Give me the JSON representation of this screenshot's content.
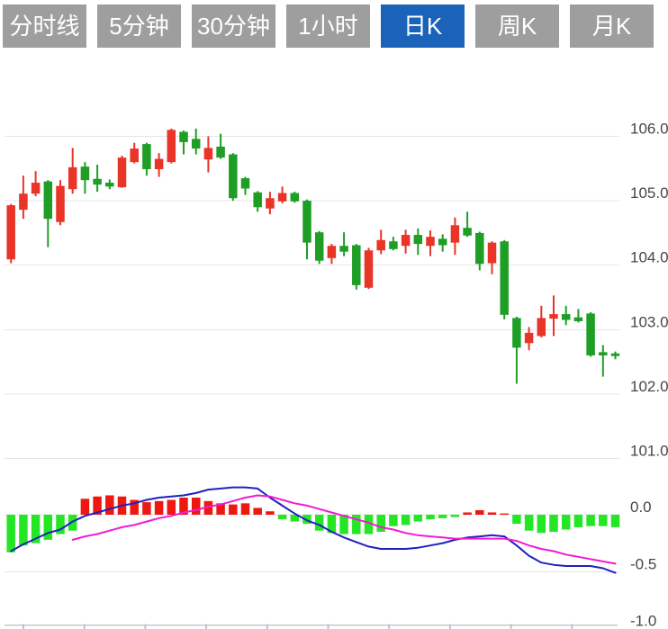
{
  "tabs": [
    {
      "label": "分时线",
      "active": false
    },
    {
      "label": "5分钟",
      "active": false
    },
    {
      "label": "30分钟",
      "active": false
    },
    {
      "label": "1小时",
      "active": false
    },
    {
      "label": "日K",
      "active": true
    },
    {
      "label": "周K",
      "active": false
    },
    {
      "label": "月K",
      "active": false
    }
  ],
  "colors": {
    "tab_gray": "#9e9e9e",
    "tab_active_blue": "#1a63b8",
    "tab_text": "#ffffff",
    "candle_up_red": "#e93428",
    "candle_down_green": "#1f9e26",
    "macd_up_red": "#ee1810",
    "macd_down_green": "#25e625",
    "dif_line_blue": "#2020c0",
    "dea_line_magenta": "#f41ad2",
    "grid_line": "#e4e4e4",
    "axis_line": "#c9c9c9",
    "tick_mark": "#b6c3d2",
    "axis_text": "#45454d"
  },
  "chart_data": [
    {
      "type": "candlestick",
      "title": "",
      "xlabel": "",
      "ylabel": "",
      "legend": "none",
      "grid": "horizontal",
      "y_axis_labels": [
        "106.0",
        "105.0",
        "104.0",
        "103.0",
        "102.0",
        "101.0"
      ],
      "y_axis_values": [
        106.0,
        105.0,
        104.0,
        103.0,
        102.0,
        101.0
      ],
      "ylim": [
        100.6,
        106.9
      ],
      "ohlc_order": [
        "open",
        "high",
        "low",
        "close"
      ],
      "candles": [
        [
          104.09,
          104.95,
          104.03,
          104.93
        ],
        [
          104.86,
          105.39,
          104.72,
          105.11
        ],
        [
          105.11,
          105.46,
          105.07,
          105.28
        ],
        [
          105.3,
          105.32,
          104.28,
          104.72
        ],
        [
          104.67,
          105.32,
          104.62,
          105.23
        ],
        [
          105.18,
          105.82,
          105.11,
          105.52
        ],
        [
          105.53,
          105.6,
          105.11,
          105.32
        ],
        [
          105.34,
          105.56,
          105.14,
          105.25
        ],
        [
          105.28,
          105.33,
          105.18,
          105.22
        ],
        [
          105.21,
          105.7,
          105.2,
          105.67
        ],
        [
          105.6,
          105.9,
          105.58,
          105.81
        ],
        [
          105.88,
          105.9,
          105.39,
          105.49
        ],
        [
          105.49,
          105.74,
          105.37,
          105.65
        ],
        [
          105.6,
          106.12,
          105.58,
          106.1
        ],
        [
          106.07,
          106.09,
          105.72,
          105.91
        ],
        [
          105.96,
          106.12,
          105.72,
          105.81
        ],
        [
          105.64,
          106.0,
          105.44,
          105.82
        ],
        [
          105.84,
          106.04,
          105.65,
          105.67
        ],
        [
          105.72,
          105.74,
          105.0,
          105.04
        ],
        [
          105.35,
          105.37,
          105.09,
          105.19
        ],
        [
          105.13,
          105.15,
          104.83,
          104.9
        ],
        [
          104.88,
          105.14,
          104.79,
          105.04
        ],
        [
          104.99,
          105.22,
          104.96,
          105.12
        ],
        [
          105.12,
          105.14,
          104.97,
          104.99
        ],
        [
          105.0,
          105.02,
          104.09,
          104.35
        ],
        [
          104.51,
          104.53,
          104.02,
          104.07
        ],
        [
          104.11,
          104.33,
          104.02,
          104.3
        ],
        [
          104.3,
          104.51,
          104.14,
          104.21
        ],
        [
          104.31,
          104.33,
          103.62,
          103.69
        ],
        [
          103.65,
          104.27,
          103.63,
          104.23
        ],
        [
          104.23,
          104.55,
          104.17,
          104.39
        ],
        [
          104.37,
          104.44,
          104.23,
          104.25
        ],
        [
          104.3,
          104.55,
          104.18,
          104.47
        ],
        [
          104.47,
          104.57,
          104.16,
          104.33
        ],
        [
          104.3,
          104.54,
          104.14,
          104.44
        ],
        [
          104.41,
          104.48,
          104.21,
          104.31
        ],
        [
          104.35,
          104.74,
          104.16,
          104.62
        ],
        [
          104.58,
          104.83,
          104.44,
          104.46
        ],
        [
          104.5,
          104.52,
          103.92,
          104.02
        ],
        [
          104.03,
          104.37,
          103.86,
          104.35
        ],
        [
          104.37,
          104.39,
          103.16,
          103.23
        ],
        [
          103.18,
          103.2,
          102.16,
          102.72
        ],
        [
          102.79,
          103.04,
          102.68,
          102.95
        ],
        [
          102.9,
          103.37,
          102.88,
          103.18
        ],
        [
          103.17,
          103.53,
          102.9,
          103.24
        ],
        [
          103.24,
          103.37,
          103.07,
          103.15
        ],
        [
          103.19,
          103.32,
          103.11,
          103.13
        ],
        [
          103.25,
          103.27,
          102.58,
          102.6
        ],
        [
          102.65,
          102.76,
          102.27,
          102.6
        ],
        [
          102.63,
          102.66,
          102.54,
          102.59
        ]
      ]
    },
    {
      "type": "macd",
      "title": "",
      "legend": "none",
      "grid": "horizontal",
      "y_axis_labels": [
        "0.0",
        "-0.5",
        "-1.0"
      ],
      "y_axis_values": [
        0.0,
        -0.5,
        -1.0
      ],
      "ylim": [
        -1.0,
        0.3
      ],
      "histogram": [
        -0.33,
        -0.27,
        -0.25,
        -0.22,
        -0.17,
        -0.14,
        0.14,
        0.16,
        0.17,
        0.16,
        0.13,
        0.11,
        0.12,
        0.13,
        0.15,
        0.15,
        0.12,
        0.1,
        0.09,
        0.1,
        0.06,
        0.03,
        -0.04,
        -0.06,
        -0.08,
        -0.14,
        -0.16,
        -0.17,
        -0.17,
        -0.17,
        -0.15,
        -0.1,
        -0.09,
        -0.06,
        -0.04,
        -0.03,
        -0.02,
        0.02,
        0.04,
        0.02,
        0.01,
        -0.08,
        -0.14,
        -0.16,
        -0.15,
        -0.13,
        -0.11,
        -0.1,
        -0.1,
        -0.11
      ],
      "dif": [
        -0.32,
        -0.26,
        -0.21,
        -0.16,
        -0.13,
        -0.06,
        -0.01,
        0.02,
        0.05,
        0.08,
        0.1,
        0.13,
        0.15,
        0.16,
        0.17,
        0.19,
        0.22,
        0.23,
        0.24,
        0.24,
        0.23,
        0.15,
        0.08,
        0.01,
        -0.05,
        -0.09,
        -0.15,
        -0.2,
        -0.24,
        -0.28,
        -0.3,
        -0.3,
        -0.3,
        -0.29,
        -0.27,
        -0.25,
        -0.22,
        -0.2,
        -0.19,
        -0.18,
        -0.19,
        -0.27,
        -0.36,
        -0.42,
        -0.44,
        -0.45,
        -0.45,
        -0.45,
        -0.47,
        -0.51
      ],
      "dea": [
        null,
        null,
        null,
        null,
        null,
        -0.22,
        -0.19,
        -0.17,
        -0.14,
        -0.11,
        -0.09,
        -0.06,
        -0.03,
        -0.01,
        0.02,
        0.04,
        0.07,
        0.09,
        0.12,
        0.15,
        0.17,
        0.16,
        0.13,
        0.1,
        0.08,
        0.05,
        0.02,
        -0.01,
        -0.04,
        -0.07,
        -0.11,
        -0.13,
        -0.16,
        -0.18,
        -0.19,
        -0.2,
        -0.21,
        -0.21,
        -0.21,
        -0.21,
        -0.21,
        -0.23,
        -0.27,
        -0.3,
        -0.32,
        -0.35,
        -0.37,
        -0.39,
        -0.41,
        -0.43
      ]
    }
  ]
}
